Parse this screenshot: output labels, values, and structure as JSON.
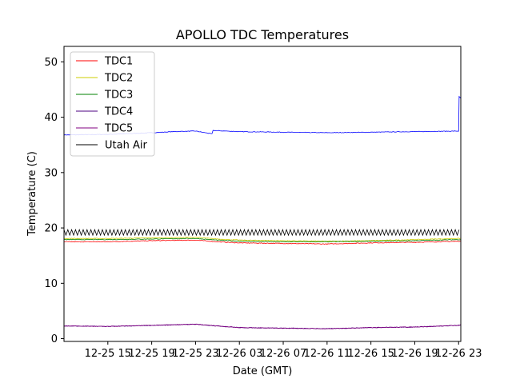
{
  "chart_data": {
    "type": "line",
    "title": "APOLLO TDC Temperatures",
    "xlabel": "Date (GMT)",
    "ylabel": "Temperature (C)",
    "x_unit": "hours since 2024-12-25 11:00 GMT",
    "xlim": [
      0,
      36.2
    ],
    "ylim": [
      -0.5,
      52.8
    ],
    "x_ticks": [
      {
        "value": 4,
        "label": "12-25 15"
      },
      {
        "value": 8,
        "label": "12-25 19"
      },
      {
        "value": 12,
        "label": "12-25 23"
      },
      {
        "value": 16,
        "label": "12-26 03"
      },
      {
        "value": 20,
        "label": "12-26 07"
      },
      {
        "value": 24,
        "label": "12-26 11"
      },
      {
        "value": 28,
        "label": "12-26 15"
      },
      {
        "value": 32,
        "label": "12-26 19"
      },
      {
        "value": 36,
        "label": "12-26 23"
      }
    ],
    "y_ticks": [
      {
        "value": 0,
        "label": "0"
      },
      {
        "value": 10,
        "label": "10"
      },
      {
        "value": 20,
        "label": "20"
      },
      {
        "value": 30,
        "label": "30"
      },
      {
        "value": 40,
        "label": "40"
      },
      {
        "value": 50,
        "label": "50"
      }
    ],
    "legend_position": "top-left",
    "series": [
      {
        "name": "TDC1",
        "color": "#ff0000",
        "x": [
          0,
          4,
          8,
          12,
          14,
          16,
          20,
          24,
          28,
          32,
          36,
          36.2
        ],
        "y": [
          17.5,
          17.5,
          17.7,
          17.8,
          17.5,
          17.3,
          17.2,
          17.1,
          17.3,
          17.4,
          17.6,
          17.6
        ]
      },
      {
        "name": "TDC2",
        "color": "#cccc00",
        "x": [
          0,
          4,
          8,
          12,
          14,
          16,
          20,
          24,
          28,
          32,
          36,
          36.2
        ],
        "y": [
          18.1,
          18.1,
          18.2,
          18.3,
          18.0,
          17.8,
          17.7,
          17.6,
          17.7,
          17.9,
          18.1,
          18.1
        ]
      },
      {
        "name": "TDC3",
        "color": "#008000",
        "x": [
          0,
          4,
          8,
          12,
          14,
          16,
          20,
          24,
          28,
          32,
          36,
          36.2
        ],
        "y": [
          17.9,
          17.9,
          18.0,
          18.1,
          17.8,
          17.6,
          17.5,
          17.5,
          17.6,
          17.7,
          17.9,
          17.9
        ]
      },
      {
        "name": "TDC4",
        "color": "#4b0082",
        "x": [
          0,
          4,
          8,
          12,
          14,
          16,
          20,
          24,
          28,
          32,
          36,
          36.2
        ],
        "y": [
          2.3,
          2.2,
          2.4,
          2.6,
          2.3,
          2.0,
          1.9,
          1.8,
          2.0,
          2.1,
          2.4,
          2.5
        ]
      },
      {
        "name": "TDC5",
        "color": "#800080",
        "x": [
          0,
          4,
          8,
          12,
          14,
          16,
          20,
          24,
          28,
          32,
          36,
          36.2
        ],
        "y": [
          2.3,
          2.2,
          2.4,
          2.6,
          2.3,
          2.0,
          1.9,
          1.8,
          2.0,
          2.1,
          2.4,
          2.5
        ]
      },
      {
        "name": "Utah Air",
        "color": "#000000",
        "x": [
          0,
          36.2
        ],
        "y": [
          19.2,
          19.2
        ],
        "oscillation": {
          "amplitude": 0.5,
          "period_hours": 0.35
        }
      }
    ],
    "blue_series": {
      "color": "#0000ff",
      "x": [
        0,
        4,
        8,
        10,
        12,
        13.5,
        13.6,
        16,
        20,
        24,
        28,
        32,
        36,
        36.05,
        36.2
      ],
      "y": [
        36.8,
        36.9,
        37.2,
        37.4,
        37.5,
        37.0,
        37.6,
        37.4,
        37.3,
        37.2,
        37.3,
        37.4,
        37.5,
        43.7,
        43.4
      ]
    }
  }
}
